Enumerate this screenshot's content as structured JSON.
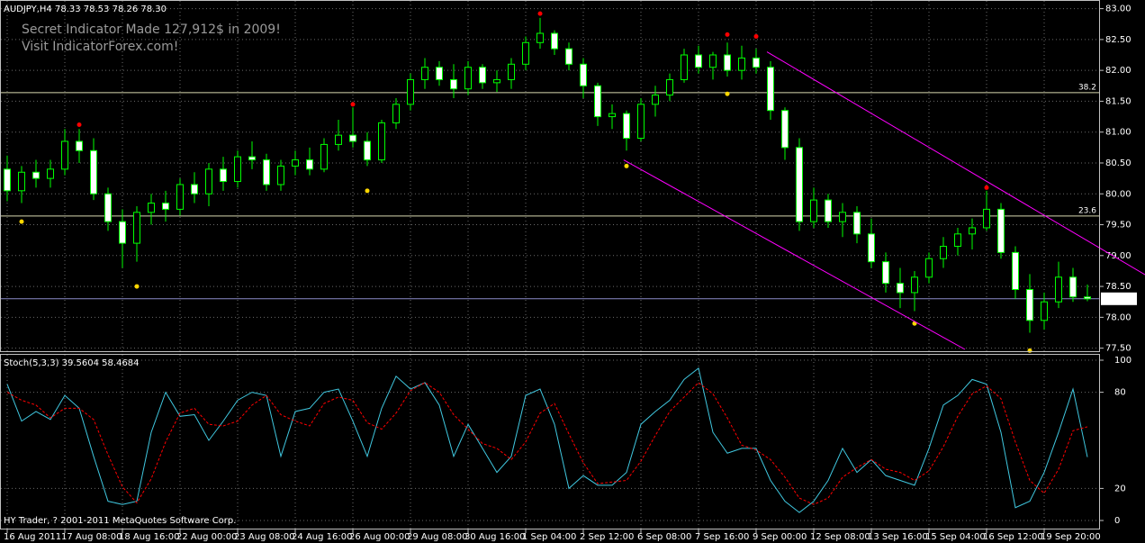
{
  "chart_data": [
    {
      "type": "candlestick",
      "title": "AUDJPY,H4  78.33 78.53 78.26 78.30",
      "annotations": [
        "Secret Indicator Made 127,912$ in 2009!",
        "Visit IndicatorForex.com!"
      ],
      "categories": [
        "16 Aug 2011",
        null,
        null,
        null,
        "17 Aug 08:00",
        null,
        null,
        null,
        "18 Aug 16:00",
        null,
        null,
        null,
        "22 Aug 00:00",
        null,
        null,
        null,
        "23 Aug 08:00",
        null,
        null,
        null,
        "24 Aug 16:00",
        null,
        null,
        null,
        "26 Aug 00:00",
        null,
        null,
        null,
        "29 Aug 08:00",
        null,
        null,
        null,
        "30 Aug 16:00",
        null,
        null,
        null,
        "1 Sep 04:00",
        null,
        null,
        null,
        "2 Sep 12:00",
        null,
        null,
        null,
        "6 Sep 08:00",
        null,
        null,
        null,
        "7 Sep 16:00",
        null,
        null,
        null,
        "9 Sep 00:00",
        null,
        null,
        null,
        "12 Sep 08:00",
        null,
        null,
        null,
        "13 Sep 16:00",
        null,
        null,
        null,
        "15 Sep 04:00",
        null,
        null,
        null,
        "16 Sep 12:00",
        null,
        null,
        null,
        "19 Sep 20:00",
        null,
        null,
        null
      ],
      "open": [
        80.4,
        80.05,
        80.35,
        80.25,
        80.4,
        80.85,
        80.7,
        80.0,
        79.55,
        79.2,
        79.7,
        79.85,
        79.75,
        80.15,
        80.0,
        80.4,
        80.2,
        80.6,
        80.55,
        80.15,
        80.45,
        80.55,
        80.4,
        80.8,
        80.95,
        80.85,
        80.55,
        81.15,
        81.45,
        81.85,
        82.05,
        81.85,
        81.7,
        82.05,
        81.8,
        81.85,
        82.1,
        82.45,
        82.6,
        82.35,
        82.1,
        81.75,
        81.25,
        81.3,
        80.9,
        81.45,
        81.6,
        81.85,
        82.25,
        82.05,
        82.25,
        82.0,
        82.2,
        82.05,
        81.35,
        80.75,
        79.55,
        79.9,
        79.55,
        79.7,
        79.35,
        78.9,
        78.55,
        78.4,
        78.65,
        78.95,
        79.15,
        79.35,
        79.45,
        79.75,
        79.05,
        78.45,
        77.95,
        78.25,
        78.65,
        78.33
      ],
      "high": [
        80.62,
        80.45,
        80.55,
        80.55,
        81.05,
        81.05,
        80.9,
        80.1,
        79.75,
        79.8,
        80.0,
        80.05,
        80.25,
        80.35,
        80.5,
        80.6,
        80.7,
        80.85,
        80.65,
        80.55,
        80.7,
        80.75,
        80.9,
        81.2,
        81.4,
        81.0,
        81.2,
        81.55,
        81.95,
        82.2,
        82.15,
        82.1,
        82.15,
        82.1,
        82.0,
        82.2,
        82.55,
        82.85,
        82.65,
        82.45,
        82.2,
        81.8,
        81.45,
        81.35,
        81.55,
        81.75,
        81.95,
        82.35,
        82.4,
        82.3,
        82.45,
        82.4,
        82.35,
        82.15,
        81.4,
        80.9,
        80.1,
        80.0,
        79.85,
        79.8,
        79.6,
        79.05,
        78.8,
        78.75,
        79.05,
        79.3,
        79.45,
        79.6,
        80.05,
        79.85,
        79.15,
        78.7,
        78.4,
        78.9,
        78.8,
        78.53
      ],
      "low": [
        79.88,
        79.85,
        80.1,
        80.1,
        80.3,
        80.5,
        79.9,
        79.4,
        78.8,
        78.9,
        79.5,
        79.55,
        79.65,
        79.85,
        79.8,
        80.05,
        80.1,
        80.4,
        80.05,
        80.05,
        80.3,
        80.3,
        80.35,
        80.7,
        80.75,
        80.45,
        80.5,
        81.05,
        81.35,
        81.7,
        81.75,
        81.55,
        81.6,
        81.7,
        81.65,
        81.7,
        82.0,
        82.35,
        82.25,
        82.0,
        81.55,
        81.1,
        81.05,
        80.7,
        80.85,
        81.25,
        81.5,
        81.8,
        81.95,
        81.85,
        81.9,
        81.85,
        81.95,
        81.2,
        80.55,
        79.4,
        79.45,
        79.45,
        79.3,
        79.2,
        78.8,
        78.4,
        78.15,
        78.1,
        78.55,
        78.8,
        79.0,
        79.1,
        79.4,
        78.95,
        78.3,
        77.75,
        77.8,
        78.15,
        78.25,
        78.26
      ],
      "close": [
        80.05,
        80.35,
        80.25,
        80.4,
        80.85,
        80.7,
        80.0,
        79.55,
        79.2,
        79.7,
        79.85,
        79.75,
        80.15,
        80.0,
        80.4,
        80.2,
        80.6,
        80.55,
        80.15,
        80.45,
        80.55,
        80.4,
        80.8,
        80.95,
        80.85,
        80.55,
        81.15,
        81.45,
        81.85,
        82.05,
        81.85,
        81.7,
        82.05,
        81.8,
        81.85,
        82.1,
        82.45,
        82.6,
        82.35,
        82.1,
        81.75,
        81.25,
        81.3,
        80.9,
        81.45,
        81.6,
        81.85,
        82.25,
        82.05,
        82.25,
        82.0,
        82.2,
        82.05,
        81.35,
        80.75,
        79.55,
        79.9,
        79.55,
        79.7,
        79.35,
        78.9,
        78.55,
        78.4,
        78.65,
        78.95,
        79.15,
        79.35,
        79.45,
        79.75,
        79.05,
        78.45,
        77.95,
        78.25,
        78.65,
        78.33,
        78.3
      ],
      "up_color": "#000000",
      "down_color": "#ffffff",
      "wick_color": "#00ff00",
      "fractal_up": [
        null,
        null,
        null,
        null,
        null,
        81.12,
        null,
        null,
        null,
        null,
        null,
        null,
        null,
        null,
        null,
        null,
        null,
        null,
        null,
        null,
        null,
        null,
        null,
        null,
        81.45,
        null,
        null,
        null,
        null,
        null,
        null,
        null,
        null,
        null,
        null,
        null,
        null,
        82.92,
        null,
        null,
        null,
        null,
        null,
        null,
        null,
        null,
        null,
        null,
        null,
        null,
        82.58,
        null,
        82.55,
        null,
        null,
        null,
        null,
        null,
        null,
        null,
        null,
        null,
        null,
        null,
        null,
        null,
        null,
        null,
        80.1,
        null,
        null,
        null,
        null,
        null,
        null,
        null
      ],
      "fractal_up_color": "#ff0000",
      "fractal_down": [
        null,
        79.55,
        null,
        null,
        null,
        null,
        null,
        null,
        null,
        78.5,
        null,
        null,
        null,
        null,
        null,
        null,
        null,
        null,
        null,
        null,
        null,
        null,
        null,
        null,
        null,
        80.05,
        null,
        null,
        null,
        null,
        null,
        null,
        null,
        null,
        null,
        null,
        null,
        null,
        null,
        null,
        null,
        null,
        null,
        80.45,
        null,
        null,
        null,
        null,
        null,
        null,
        81.62,
        null,
        null,
        null,
        null,
        null,
        null,
        null,
        null,
        null,
        null,
        null,
        null,
        77.9,
        null,
        null,
        null,
        null,
        null,
        null,
        null,
        77.46,
        null,
        null,
        null,
        null
      ],
      "fractal_down_color": "#ffd700",
      "levels": [
        {
          "value": 81.64,
          "label": "38.2"
        },
        {
          "value": 79.64,
          "label": "23.6"
        }
      ],
      "level_color": "#d8d8b0",
      "level_label_color": "#ffff00",
      "last_price": {
        "value": 78.3,
        "label": "78.30"
      },
      "last_price_color": "#8a8ac8",
      "trendlines": [
        {
          "x": [
            52.75,
            79
          ],
          "y": [
            82.3,
            78.69
          ]
        },
        {
          "x": [
            42.8,
            66.5
          ],
          "y": [
            80.55,
            77.48
          ]
        }
      ],
      "trendline_color": "#ff00ff",
      "ylim": [
        77.48,
        83.14
      ],
      "yticks": [
        {
          "value": 77.5,
          "label": "77.50"
        },
        {
          "value": 78.0,
          "label": "78.00"
        },
        {
          "value": 78.5,
          "label": "78.50"
        },
        {
          "value": 79.0,
          "label": "79.00"
        },
        {
          "value": 79.5,
          "label": "79.50"
        },
        {
          "value": 80.0,
          "label": "80.00"
        },
        {
          "value": 80.5,
          "label": "80.50"
        },
        {
          "value": 81.0,
          "label": "81.00"
        },
        {
          "value": 81.5,
          "label": "81.50"
        },
        {
          "value": 82.0,
          "label": "82.00"
        },
        {
          "value": 82.5,
          "label": "82.50"
        },
        {
          "value": 83.0,
          "label": "83.00"
        }
      ],
      "grid": true
    },
    {
      "type": "line",
      "title": "Stoch(5,3,3) 39.5604 58.4684",
      "footer": "HY Trader, ? 2001-2011 MetaQuotes Software Corp.",
      "series": [
        {
          "color": "#40c8e0",
          "dashed": false,
          "values": [
            85,
            62,
            68,
            63,
            78,
            70,
            40,
            12,
            10,
            12,
            55,
            80,
            65,
            66,
            50,
            62,
            75,
            80,
            78,
            40,
            68,
            70,
            80,
            82,
            62,
            40,
            70,
            90,
            82,
            86,
            72,
            40,
            60,
            45,
            30,
            40,
            78,
            82,
            60,
            20,
            28,
            22,
            22,
            30,
            60,
            68,
            75,
            88,
            95,
            55,
            42,
            45,
            45,
            25,
            12,
            5,
            12,
            25,
            45,
            30,
            38,
            28,
            25,
            22,
            45,
            72,
            78,
            88,
            85,
            55,
            8,
            12,
            30,
            55,
            82,
            39.5604
          ]
        },
        {
          "color": "#ff0000",
          "dashed": true,
          "values": [
            80,
            75,
            72,
            64,
            70,
            70,
            63,
            41,
            21,
            11,
            26,
            49,
            67,
            70,
            60,
            59,
            62,
            72,
            78,
            66,
            62,
            59,
            73,
            77,
            75,
            61,
            57,
            67,
            81,
            86,
            80,
            66,
            57,
            48,
            45,
            38,
            49,
            67,
            73,
            54,
            36,
            23,
            24,
            25,
            37,
            53,
            68,
            77,
            86,
            79,
            64,
            47,
            44,
            38,
            27,
            14,
            10,
            14,
            27,
            33,
            38,
            32,
            30,
            25,
            31,
            46,
            65,
            79,
            84,
            76,
            49,
            25,
            17,
            32,
            56,
            58.4684
          ]
        }
      ],
      "ylim": [
        0,
        100
      ],
      "yticks": [
        0,
        20,
        80,
        100
      ],
      "grid": true
    }
  ]
}
